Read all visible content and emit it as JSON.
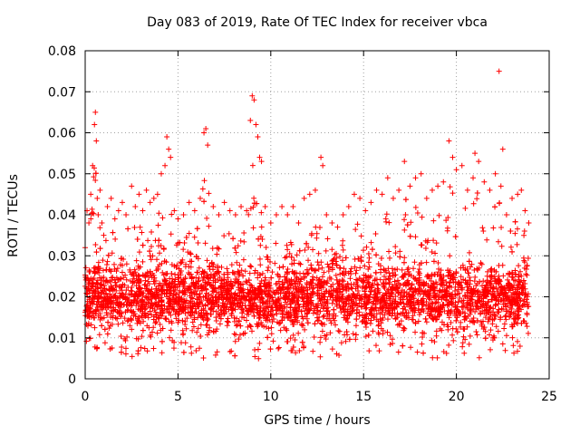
{
  "chart_data": {
    "type": "scatter",
    "title": "Day 083 of 2019, Rate Of TEC Index for receiver vbca",
    "xlabel": "GPS time / hours",
    "ylabel": "ROTI / TECUs",
    "xlim": [
      0,
      25
    ],
    "ylim": [
      0,
      0.08
    ],
    "grid": true,
    "marker": "+",
    "color": "#ff0000",
    "x_ticks": [
      0,
      5,
      10,
      15,
      20,
      25
    ],
    "x_tick_labels": [
      "0",
      "5",
      "10",
      "15",
      "20",
      "25"
    ],
    "y_ticks": [
      0,
      0.01,
      0.02,
      0.03,
      0.04,
      0.05,
      0.06,
      0.07,
      0.08
    ],
    "y_tick_labels": [
      "0",
      "0.01",
      "0.02",
      "0.03",
      "0.04",
      "0.05",
      "0.06",
      "0.07",
      "0.08"
    ],
    "series": [
      {
        "name": "ROTI",
        "x": [
          0.0,
          0.1,
          0.2,
          0.3,
          0.4,
          0.5,
          0.55,
          0.6,
          0.65,
          0.7,
          0.8,
          0.9,
          1.0,
          1.2,
          1.4,
          1.6,
          1.8,
          2.0,
          2.2,
          2.5,
          2.7,
          2.9,
          3.1,
          3.3,
          3.5,
          3.7,
          3.9,
          4.1,
          4.3,
          4.4,
          4.5,
          4.6,
          4.8,
          5.0,
          5.3,
          5.6,
          5.9,
          6.2,
          6.4,
          6.5,
          6.6,
          6.9,
          7.2,
          7.5,
          7.8,
          8.1,
          8.4,
          8.7,
          8.9,
          9.0,
          9.1,
          9.2,
          9.3,
          9.4,
          9.5,
          9.7,
          10.0,
          10.3,
          10.6,
          10.9,
          11.2,
          11.5,
          11.8,
          12.1,
          12.4,
          12.7,
          12.8,
          13.0,
          13.3,
          13.6,
          13.9,
          14.2,
          14.5,
          14.8,
          15.1,
          15.4,
          15.7,
          16.0,
          16.3,
          16.6,
          16.9,
          17.2,
          17.5,
          17.8,
          18.1,
          18.4,
          18.7,
          19.0,
          19.3,
          19.6,
          19.8,
          20.0,
          20.3,
          20.6,
          20.9,
          21.0,
          21.2,
          21.5,
          21.8,
          22.1,
          22.3,
          22.4,
          22.5,
          22.7,
          23.0,
          23.3,
          23.5,
          23.7,
          23.9
        ],
        "y": [
          0.032,
          0.041,
          0.038,
          0.045,
          0.052,
          0.062,
          0.065,
          0.058,
          0.044,
          0.04,
          0.046,
          0.038,
          0.035,
          0.042,
          0.044,
          0.039,
          0.041,
          0.043,
          0.04,
          0.047,
          0.042,
          0.045,
          0.041,
          0.046,
          0.043,
          0.044,
          0.045,
          0.05,
          0.052,
          0.059,
          0.056,
          0.054,
          0.041,
          0.039,
          0.04,
          0.043,
          0.041,
          0.044,
          0.06,
          0.061,
          0.057,
          0.042,
          0.04,
          0.043,
          0.041,
          0.04,
          0.042,
          0.041,
          0.063,
          0.069,
          0.068,
          0.062,
          0.059,
          0.054,
          0.053,
          0.042,
          0.038,
          0.04,
          0.042,
          0.04,
          0.042,
          0.038,
          0.044,
          0.045,
          0.046,
          0.054,
          0.052,
          0.04,
          0.038,
          0.037,
          0.04,
          0.042,
          0.045,
          0.044,
          0.041,
          0.043,
          0.046,
          0.045,
          0.049,
          0.044,
          0.046,
          0.053,
          0.047,
          0.049,
          0.05,
          0.044,
          0.046,
          0.047,
          0.048,
          0.058,
          0.054,
          0.051,
          0.052,
          0.046,
          0.049,
          0.055,
          0.053,
          0.048,
          0.046,
          0.05,
          0.075,
          0.047,
          0.056,
          0.04,
          0.044,
          0.045,
          0.046,
          0.041,
          0.038
        ],
        "low": [
          0.007,
          0.006,
          0.005,
          0.006,
          0.004,
          0.005,
          0.005,
          0.005,
          0.006,
          0.006,
          0.005,
          0.006,
          0.007,
          0.006,
          0.005,
          0.006,
          0.005,
          0.005,
          0.006,
          0.005,
          0.006,
          0.006,
          0.005,
          0.006,
          0.006,
          0.006,
          0.005,
          0.005,
          0.004,
          0.004,
          0.005,
          0.005,
          0.006,
          0.007,
          0.006,
          0.006,
          0.006,
          0.005,
          0.005,
          0.005,
          0.006,
          0.006,
          0.005,
          0.005,
          0.006,
          0.005,
          0.006,
          0.005,
          0.006,
          0.005,
          0.005,
          0.003,
          0.003,
          0.006,
          0.007,
          0.007,
          0.006,
          0.006,
          0.006,
          0.007,
          0.006,
          0.006,
          0.005,
          0.006,
          0.005,
          0.005,
          0.006,
          0.006,
          0.005,
          0.005,
          0.005,
          0.006,
          0.006,
          0.006,
          0.006,
          0.005,
          0.006,
          0.006,
          0.005,
          0.005,
          0.006,
          0.005,
          0.006,
          0.005,
          0.005,
          0.006,
          0.005,
          0.005,
          0.005,
          0.005,
          0.005,
          0.006,
          0.005,
          0.006,
          0.005,
          0.005,
          0.004,
          0.005,
          0.006,
          0.006,
          0.006,
          0.005,
          0.005,
          0.006,
          0.006,
          0.006,
          0.007,
          0.007,
          0.008
        ]
      }
    ]
  }
}
